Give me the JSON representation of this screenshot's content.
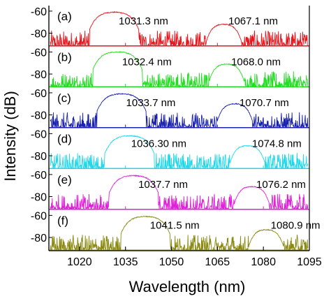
{
  "chart_data": [
    {
      "type": "line",
      "panel_label": "(a)",
      "color": "#e8141c",
      "peaks": [
        {
          "wavelength_nm": 1031.3,
          "label": "1031.3 nm",
          "center": 1031.3,
          "width": 7.0,
          "peak_db": -61
        },
        {
          "wavelength_nm": 1067.1,
          "label": "1067.1 nm",
          "center": 1067.1,
          "width": 5.0,
          "peak_db": -72
        }
      ]
    },
    {
      "type": "line",
      "panel_label": "(b)",
      "color": "#22dd22",
      "peaks": [
        {
          "wavelength_nm": 1032.4,
          "label": "1032.4 nm",
          "center": 1032.4,
          "width": 7.0,
          "peak_db": -60
        },
        {
          "wavelength_nm": 1068.0,
          "label": "1068.0 nm",
          "center": 1068.0,
          "width": 5.0,
          "peak_db": -71
        }
      ]
    },
    {
      "type": "line",
      "panel_label": "(c)",
      "color": "#1a22b0",
      "peaks": [
        {
          "wavelength_nm": 1033.7,
          "label": "1033.7 nm",
          "center": 1033.7,
          "width": 7.0,
          "peak_db": -61
        },
        {
          "wavelength_nm": 1070.7,
          "label": "1070.7 nm",
          "center": 1070.7,
          "width": 5.0,
          "peak_db": -70
        }
      ]
    },
    {
      "type": "line",
      "panel_label": "(d)",
      "color": "#22d8e8",
      "peaks": [
        {
          "wavelength_nm": 1036.3,
          "label": "1036.30 nm",
          "center": 1036.3,
          "width": 7.0,
          "peak_db": -62
        },
        {
          "wavelength_nm": 1074.8,
          "label": "1074.8 nm",
          "center": 1074.8,
          "width": 5.0,
          "peak_db": -71
        }
      ]
    },
    {
      "type": "line",
      "panel_label": "(e)",
      "color": "#e020d8",
      "peaks": [
        {
          "wavelength_nm": 1037.7,
          "label": "1037.7 nm",
          "center": 1037.7,
          "width": 7.0,
          "peak_db": -61
        },
        {
          "wavelength_nm": 1076.2,
          "label": "1076.2 nm",
          "center": 1076.2,
          "width": 5.0,
          "peak_db": -71
        }
      ]
    },
    {
      "type": "line",
      "panel_label": "(f)",
      "color": "#8a8a10",
      "peaks": [
        {
          "wavelength_nm": 1041.5,
          "label": "1041.5 nm",
          "center": 1041.5,
          "width": 7.0,
          "peak_db": -61
        },
        {
          "wavelength_nm": 1080.9,
          "label": "1080.9 nm",
          "center": 1080.9,
          "width": 5.0,
          "peak_db": -73
        }
      ]
    }
  ],
  "axes": {
    "xlabel": "Wavelength (nm)",
    "ylabel": "Intensity (dB)",
    "xlim": [
      1010,
      1095
    ],
    "xticks": [
      1020,
      1035,
      1050,
      1065,
      1080,
      1095
    ],
    "ylim_per_panel": [
      -92,
      -55
    ],
    "yticks": [
      -60,
      -80
    ]
  }
}
